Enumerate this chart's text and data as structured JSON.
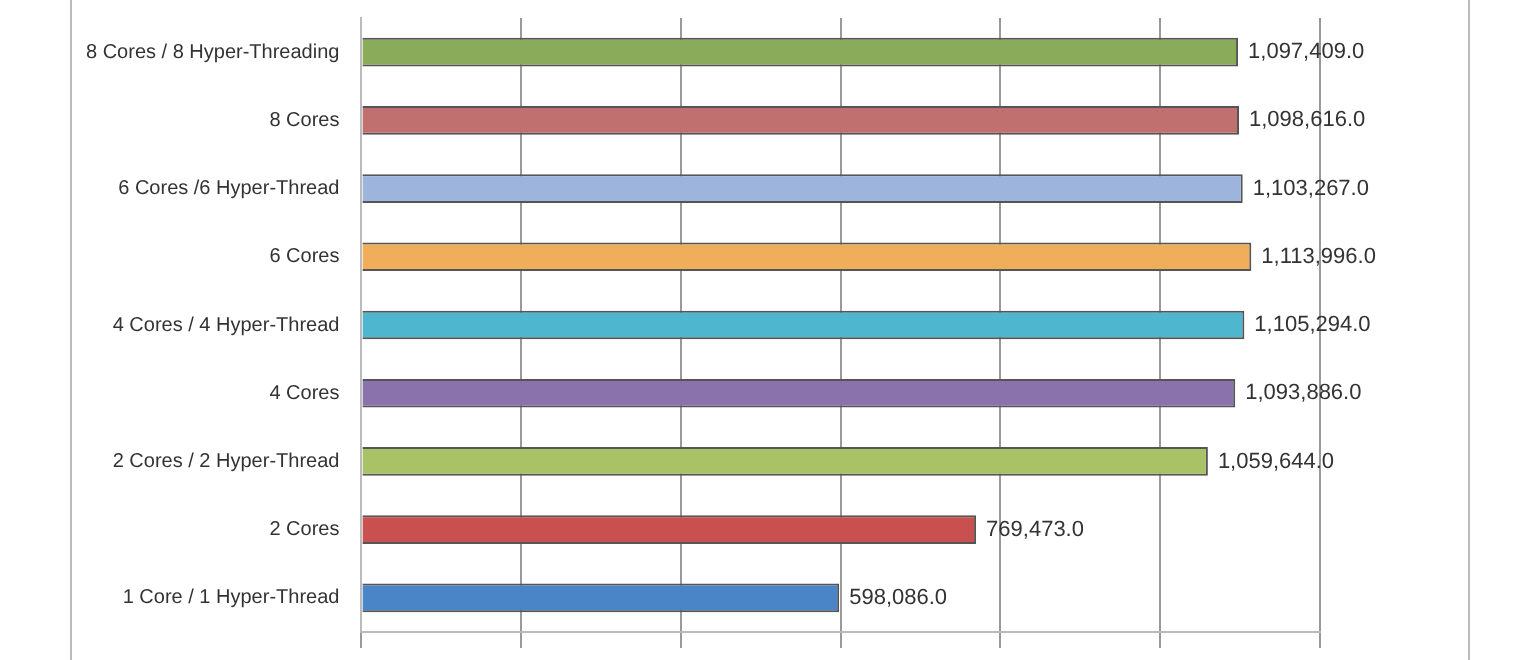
{
  "chart_data": {
    "type": "bar",
    "orientation": "horizontal",
    "categories": [
      "8 Cores / 8 Hyper-Threading",
      "8 Cores",
      "6 Cores /6 Hyper-Thread",
      "6 Cores",
      "4 Cores / 4 Hyper-Thread",
      "4 Cores",
      "2 Cores / 2 Hyper-Thread",
      "2 Cores",
      "1 Core / 1 Hyper-Thread"
    ],
    "values": [
      1097409,
      1098616,
      1103267,
      1113996,
      1105294,
      1093886,
      1059644,
      769473,
      598086
    ],
    "colors": [
      "#8aab5a",
      "#c0706e",
      "#9db5dc",
      "#f0ad5a",
      "#4fb6cf",
      "#8a72ad",
      "#a9c266",
      "#c8504e",
      "#4a86c7"
    ],
    "value_labels": [
      "1,097,409.0",
      "1,098,616.0",
      "1,103,267.0",
      "1,113,996.0",
      "1,105,294.0",
      "1,093,886.0",
      "1,059,644.0",
      "769,473.0",
      "598,086.0"
    ],
    "xlim": [
      0,
      1200000
    ],
    "xticks": [
      {
        "value": 0,
        "label": null
      },
      {
        "value": 200000,
        "label": null
      },
      {
        "value": 400000,
        "label": null
      },
      {
        "value": 600000,
        "label": null
      },
      {
        "value": 800000,
        "label": null
      },
      {
        "value": 1000000,
        "label": null
      },
      {
        "value": 1200000,
        "label": null
      }
    ],
    "grid": "x",
    "legend": false,
    "tick_labels": "y"
  }
}
